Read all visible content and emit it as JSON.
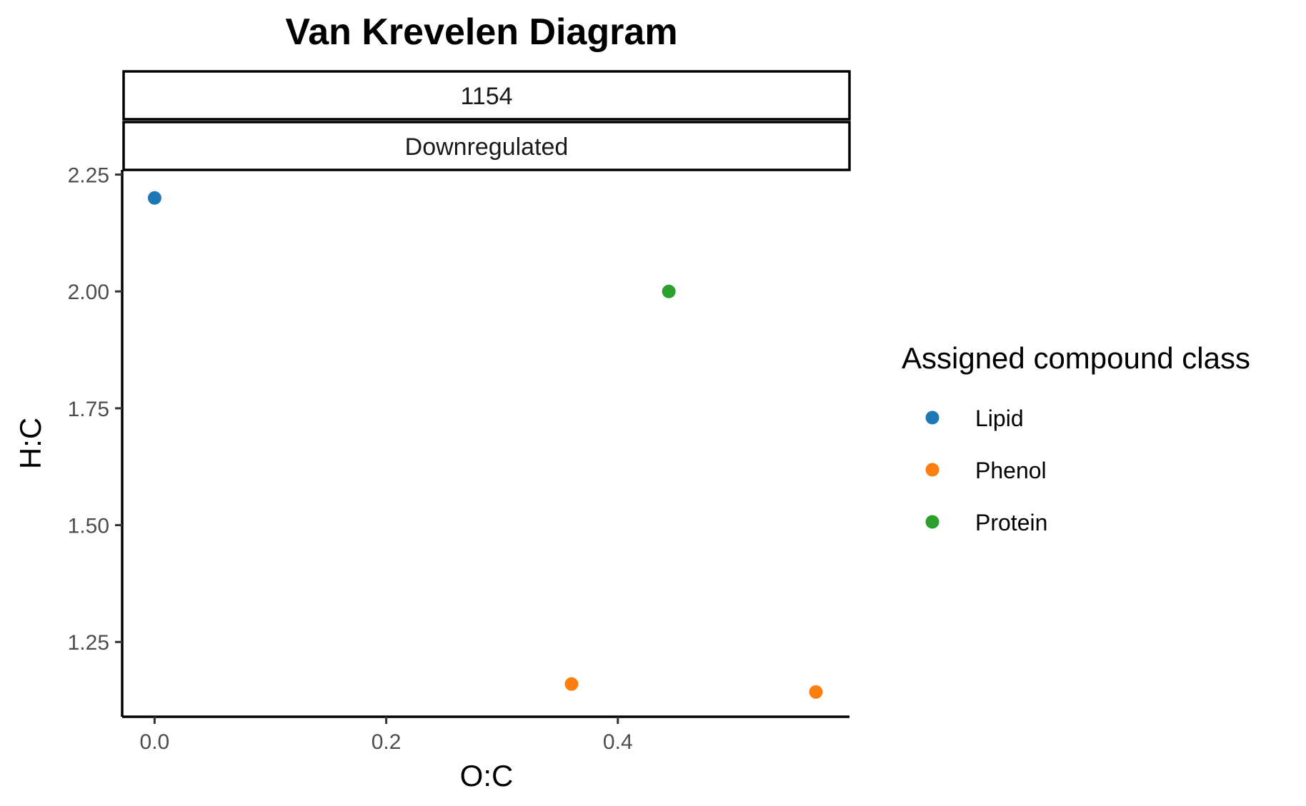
{
  "chart_data": {
    "type": "scatter",
    "title": "Van Krevelen Diagram",
    "facet_labels": [
      "1154",
      "Downregulated"
    ],
    "xlabel": "O:C",
    "ylabel": "H:C",
    "xlim": [
      -0.028,
      0.6
    ],
    "ylim": [
      1.09,
      2.26
    ],
    "x_ticks": [
      {
        "value": 0.0,
        "label": "0.0"
      },
      {
        "value": 0.2,
        "label": "0.2"
      },
      {
        "value": 0.4,
        "label": "0.4"
      }
    ],
    "y_ticks": [
      {
        "value": 1.25,
        "label": "1.25"
      },
      {
        "value": 1.5,
        "label": "1.50"
      },
      {
        "value": 1.75,
        "label": "1.75"
      },
      {
        "value": 2.0,
        "label": "2.00"
      },
      {
        "value": 2.25,
        "label": "2.25"
      }
    ],
    "grid": false,
    "legend_title": "Assigned compound class",
    "legend_position": "right",
    "series": [
      {
        "name": "Lipid",
        "color": "#1f77b4",
        "points": [
          {
            "x": 0.0,
            "y": 2.2
          }
        ]
      },
      {
        "name": "Phenol",
        "color": "#ff7f0e",
        "points": [
          {
            "x": 0.36,
            "y": 1.16
          },
          {
            "x": 0.571,
            "y": 1.143
          }
        ]
      },
      {
        "name": "Protein",
        "color": "#2ca02c",
        "points": [
          {
            "x": 0.444,
            "y": 2.0
          }
        ]
      }
    ]
  }
}
